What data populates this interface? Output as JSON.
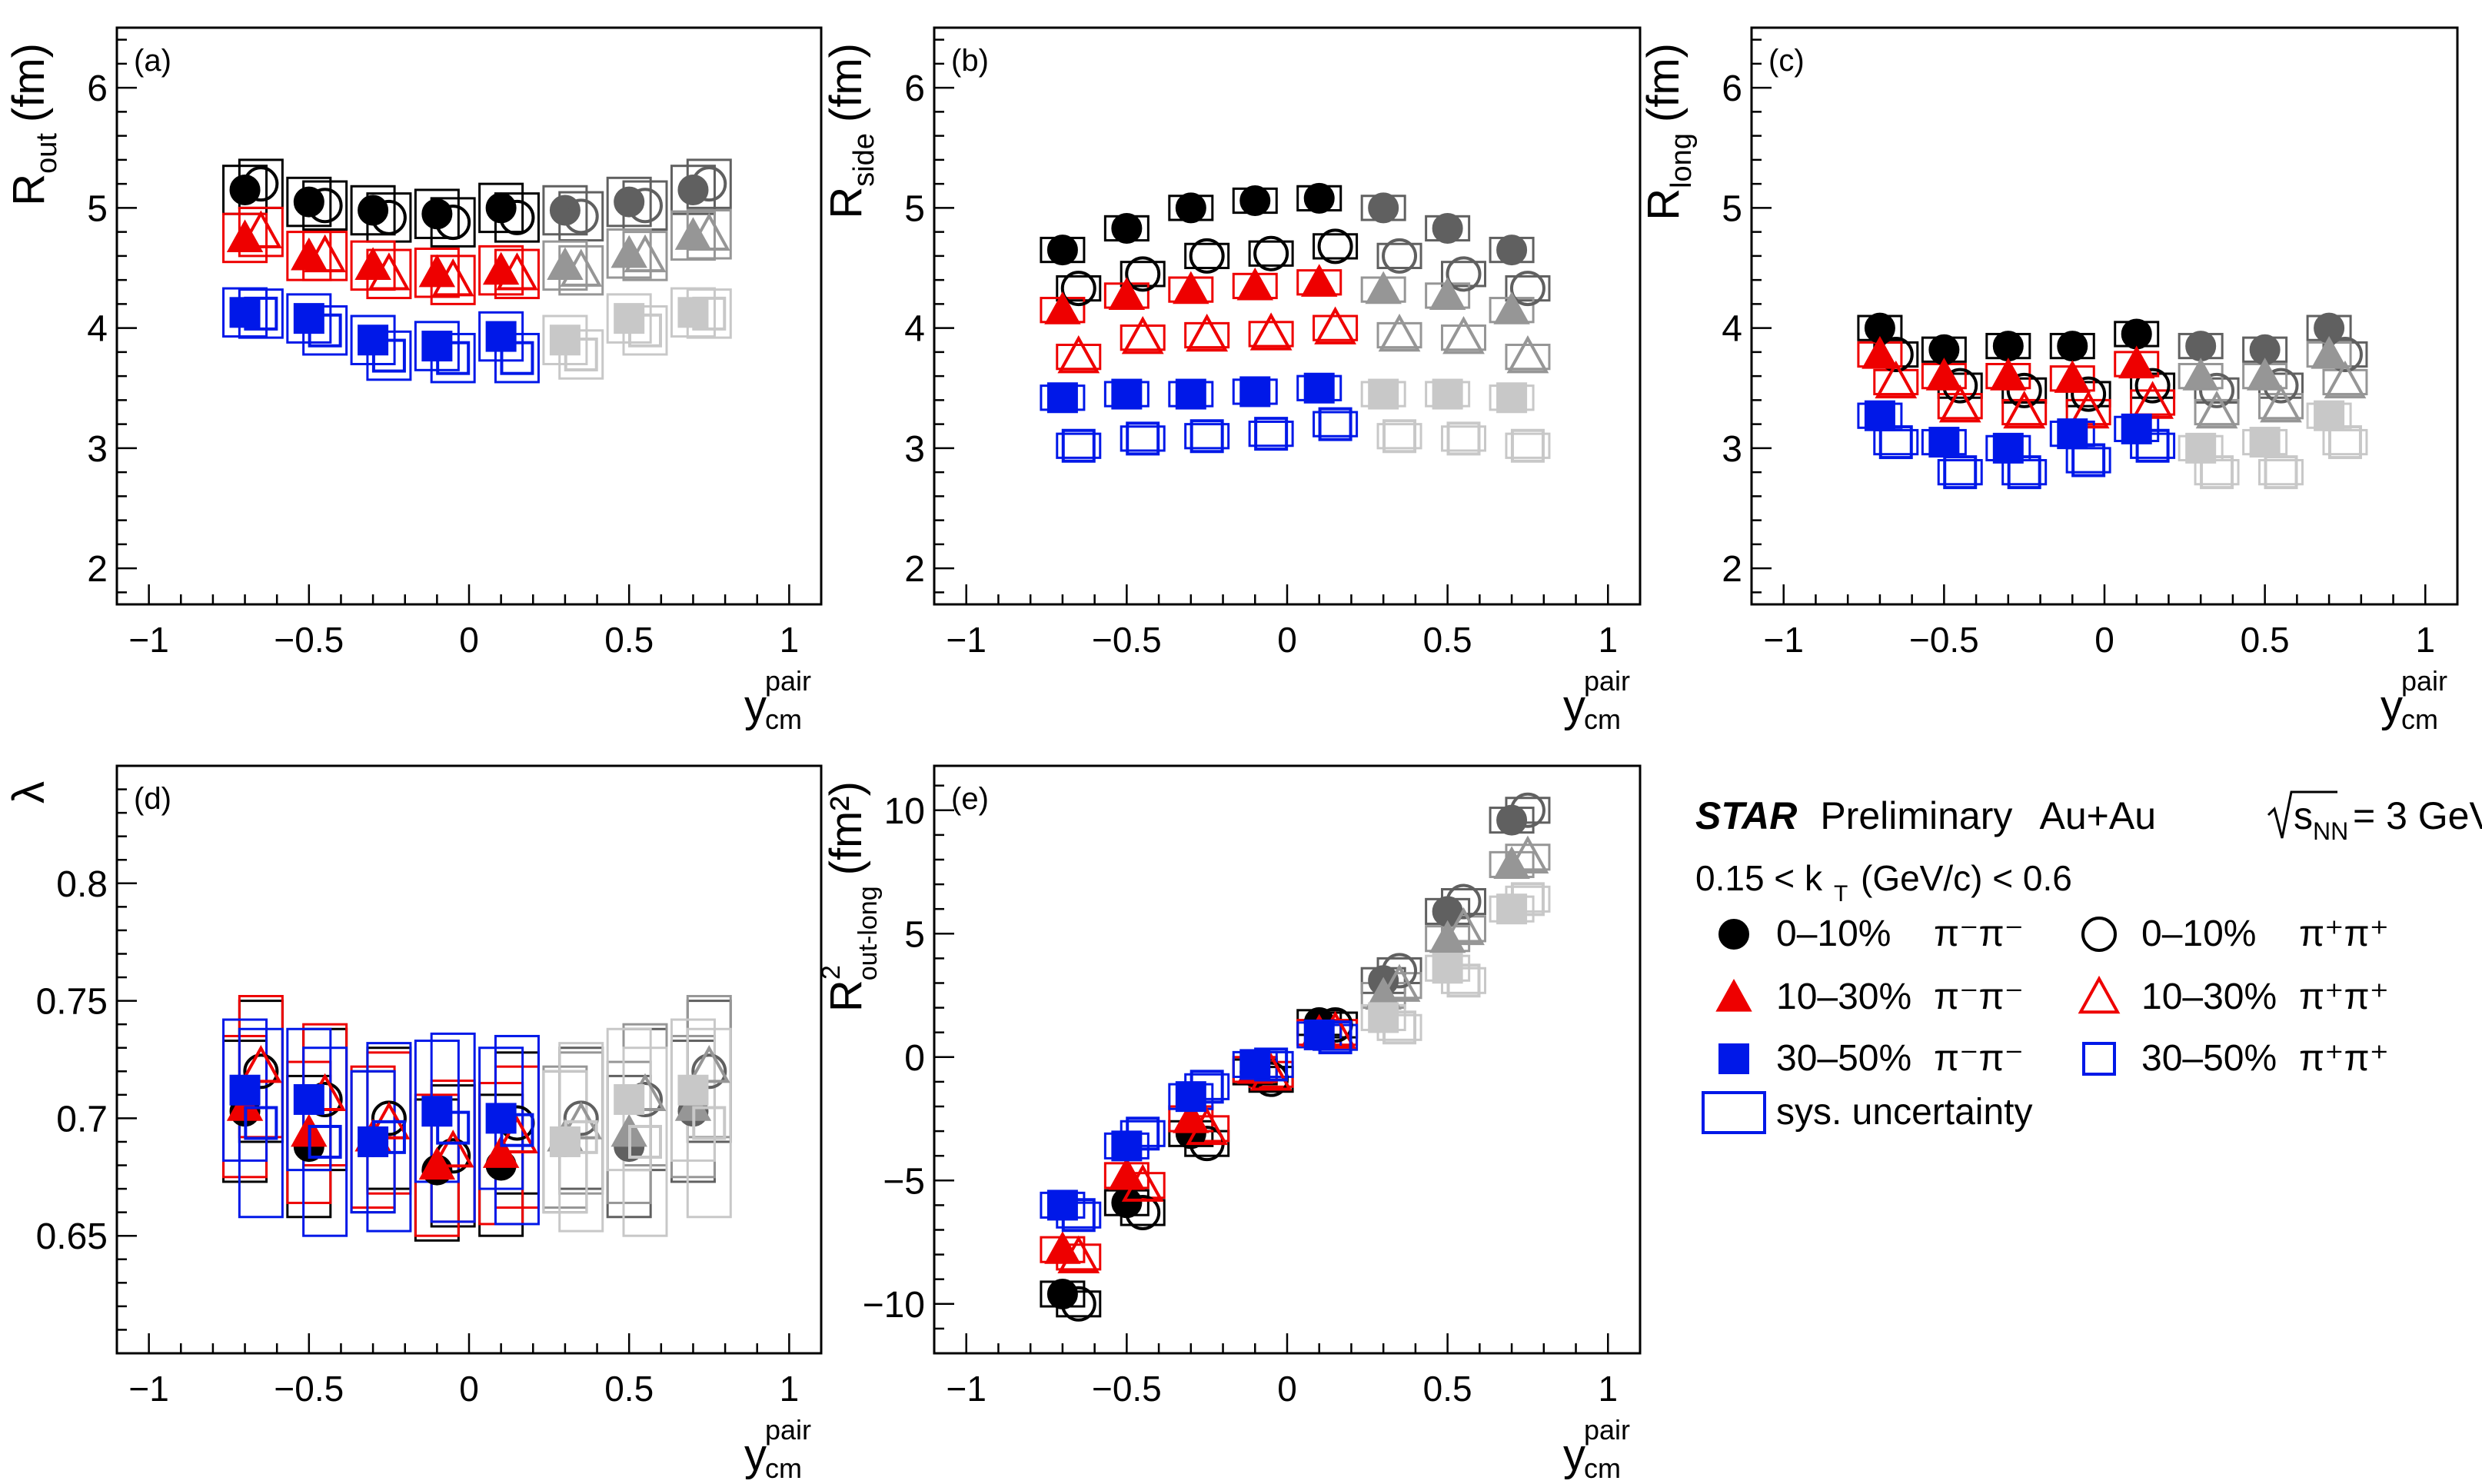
{
  "figure": {
    "colors": {
      "black": "#000000",
      "red": "#ee0000",
      "blue": "#0018e8",
      "dark_gray": "#606060",
      "mid_gray": "#969696",
      "light_gray": "#c8c8c8",
      "frame": "#000000"
    },
    "x_axis": {
      "ticks": [
        -1,
        -0.5,
        0,
        0.5,
        1
      ],
      "tick_labels": [
        "−1",
        "−0.5",
        "0",
        "0.5",
        "1"
      ],
      "label_main": "y",
      "label_sup": "pair",
      "label_sub": "cm",
      "range": [
        -1.1,
        1.1
      ]
    },
    "legend": {
      "star": "STAR",
      "preliminary": "Preliminary",
      "system": "Au+Au",
      "energy_s": "s",
      "energy_sub": "NN",
      "energy_value": "= 3 GeV",
      "kt_pre": "0.15 < k",
      "kt_sub": "T",
      "kt_post": "(GeV/c) < 0.6",
      "entries": [
        {
          "label": "0–10%",
          "pair": "π⁻π⁻",
          "marker": "circle",
          "filled": true,
          "color": "#000000"
        },
        {
          "label": "0–10%",
          "pair": "π⁺π⁺",
          "marker": "circle",
          "filled": false,
          "color": "#000000"
        },
        {
          "label": "10–30%",
          "pair": "π⁻π⁻",
          "marker": "triangle",
          "filled": true,
          "color": "#ee0000"
        },
        {
          "label": "10–30%",
          "pair": "π⁺π⁺",
          "marker": "triangle",
          "filled": false,
          "color": "#ee0000"
        },
        {
          "label": "30–50%",
          "pair": "π⁻π⁻",
          "marker": "square",
          "filled": true,
          "color": "#0018e8"
        },
        {
          "label": "30–50%",
          "pair": "π⁺π⁺",
          "marker": "square",
          "filled": false,
          "color": "#0018e8"
        }
      ],
      "sys_label": "sys. uncertainty"
    }
  },
  "chart_data": [
    {
      "type": "scatter",
      "panel": "(a)",
      "ylabel_main": "R",
      "ylabel_sub": "out",
      "ylabel_unit": "(fm)",
      "ylim": [
        1.7,
        6.5
      ],
      "yticks": [
        2,
        3,
        4,
        5,
        6
      ],
      "ytick_labels": [
        "2",
        "3",
        "4",
        "5",
        "6"
      ],
      "xlim": [
        -1.1,
        1.1
      ],
      "x_minus": [
        -0.7,
        -0.5,
        -0.3,
        -0.1,
        0.1,
        0.3,
        0.5,
        0.7
      ],
      "x_plus": [
        -0.65,
        -0.45,
        -0.25,
        -0.05,
        0.15,
        0.35,
        0.55,
        0.75
      ],
      "series": [
        {
          "name": "0–10% π⁻π⁻",
          "marker": "circle",
          "filled": true,
          "color": "#000000",
          "gray": "#606060",
          "values": [
            5.15,
            5.05,
            4.98,
            4.95,
            5.0,
            4.98,
            5.05,
            5.15
          ],
          "sys": 0.2
        },
        {
          "name": "0–10% π⁺π⁺",
          "marker": "circle",
          "filled": false,
          "color": "#000000",
          "gray": "#606060",
          "values": [
            5.2,
            5.02,
            4.92,
            4.88,
            4.92,
            4.93,
            5.02,
            5.2
          ],
          "sys": 0.2
        },
        {
          "name": "10–30% π⁻π⁻",
          "marker": "triangle",
          "filled": true,
          "color": "#ee0000",
          "gray": "#969696",
          "values": [
            4.75,
            4.6,
            4.52,
            4.46,
            4.48,
            4.52,
            4.62,
            4.77
          ],
          "sys": 0.2
        },
        {
          "name": "10–30% π⁺π⁺",
          "marker": "triangle",
          "filled": false,
          "color": "#ee0000",
          "gray": "#969696",
          "values": [
            4.8,
            4.6,
            4.45,
            4.4,
            4.45,
            4.48,
            4.6,
            4.78
          ],
          "sys": 0.2
        },
        {
          "name": "30–50% π⁻π⁻",
          "marker": "square",
          "filled": true,
          "color": "#0018e8",
          "gray": "#c8c8c8",
          "values": [
            4.13,
            4.08,
            3.9,
            3.85,
            3.93,
            3.9,
            4.08,
            4.13
          ],
          "sys": 0.2
        },
        {
          "name": "30–50% π⁺π⁺",
          "marker": "square",
          "filled": false,
          "color": "#0018e8",
          "gray": "#c8c8c8",
          "values": [
            4.12,
            3.98,
            3.77,
            3.75,
            3.75,
            3.78,
            3.98,
            4.12
          ],
          "sys": 0.2
        }
      ]
    },
    {
      "type": "scatter",
      "panel": "(b)",
      "ylabel_main": "R",
      "ylabel_sub": "side",
      "ylabel_unit": "(fm)",
      "ylim": [
        1.7,
        6.5
      ],
      "yticks": [
        2,
        3,
        4,
        5,
        6
      ],
      "ytick_labels": [
        "2",
        "3",
        "4",
        "5",
        "6"
      ],
      "xlim": [
        -1.1,
        1.1
      ],
      "x_minus": [
        -0.7,
        -0.5,
        -0.3,
        -0.1,
        0.1,
        0.3,
        0.5,
        0.7
      ],
      "x_plus": [
        -0.65,
        -0.45,
        -0.25,
        -0.05,
        0.15,
        0.35,
        0.55,
        0.75
      ],
      "series": [
        {
          "name": "0–10% π⁻π⁻",
          "marker": "circle",
          "filled": true,
          "color": "#000000",
          "gray": "#606060",
          "values": [
            4.65,
            4.83,
            5.0,
            5.06,
            5.08,
            5.0,
            4.83,
            4.65
          ],
          "sys": 0.1
        },
        {
          "name": "0–10% π⁺π⁺",
          "marker": "circle",
          "filled": false,
          "color": "#000000",
          "gray": "#606060",
          "values": [
            4.33,
            4.45,
            4.6,
            4.62,
            4.68,
            4.6,
            4.45,
            4.33
          ],
          "sys": 0.1
        },
        {
          "name": "10–30% π⁻π⁻",
          "marker": "triangle",
          "filled": true,
          "color": "#ee0000",
          "gray": "#969696",
          "values": [
            4.15,
            4.27,
            4.32,
            4.35,
            4.38,
            4.32,
            4.27,
            4.15
          ],
          "sys": 0.1
        },
        {
          "name": "10–30% π⁺π⁺",
          "marker": "triangle",
          "filled": false,
          "color": "#ee0000",
          "gray": "#969696",
          "values": [
            3.76,
            3.92,
            3.94,
            3.95,
            4.0,
            3.94,
            3.92,
            3.76
          ],
          "sys": 0.1
        },
        {
          "name": "30–50% π⁻π⁻",
          "marker": "square",
          "filled": true,
          "color": "#0018e8",
          "gray": "#c8c8c8",
          "values": [
            3.42,
            3.45,
            3.45,
            3.47,
            3.5,
            3.45,
            3.45,
            3.42
          ],
          "sys": 0.1
        },
        {
          "name": "30–50% π⁺π⁺",
          "marker": "square",
          "filled": false,
          "color": "#0018e8",
          "gray": "#c8c8c8",
          "values": [
            3.02,
            3.08,
            3.1,
            3.12,
            3.2,
            3.1,
            3.08,
            3.02
          ],
          "sys": 0.1
        }
      ]
    },
    {
      "type": "scatter",
      "panel": "(c)",
      "ylabel_main": "R",
      "ylabel_sub": "long",
      "ylabel_unit": "(fm)",
      "ylim": [
        1.7,
        6.5
      ],
      "yticks": [
        2,
        3,
        4,
        5,
        6
      ],
      "ytick_labels": [
        "2",
        "3",
        "4",
        "5",
        "6"
      ],
      "xlim": [
        -1.1,
        1.1
      ],
      "x_minus": [
        -0.7,
        -0.5,
        -0.3,
        -0.1,
        0.1,
        0.3,
        0.5,
        0.7
      ],
      "x_plus": [
        -0.65,
        -0.45,
        -0.25,
        -0.05,
        0.15,
        0.35,
        0.55,
        0.75
      ],
      "series": [
        {
          "name": "0–10% π⁻π⁻",
          "marker": "circle",
          "filled": true,
          "color": "#000000",
          "gray": "#606060",
          "values": [
            4.0,
            3.82,
            3.85,
            3.85,
            3.95,
            3.85,
            3.82,
            4.0
          ],
          "sys": 0.1
        },
        {
          "name": "0–10% π⁺π⁺",
          "marker": "circle",
          "filled": false,
          "color": "#000000",
          "gray": "#606060",
          "values": [
            3.78,
            3.52,
            3.48,
            3.45,
            3.52,
            3.48,
            3.52,
            3.78
          ],
          "sys": 0.1
        },
        {
          "name": "10–30% π⁻π⁻",
          "marker": "triangle",
          "filled": true,
          "color": "#ee0000",
          "gray": "#969696",
          "values": [
            3.78,
            3.6,
            3.6,
            3.58,
            3.7,
            3.6,
            3.6,
            3.78
          ],
          "sys": 0.1
        },
        {
          "name": "10–30% π⁺π⁺",
          "marker": "triangle",
          "filled": false,
          "color": "#ee0000",
          "gray": "#969696",
          "values": [
            3.55,
            3.35,
            3.3,
            3.3,
            3.38,
            3.3,
            3.35,
            3.55
          ],
          "sys": 0.1
        },
        {
          "name": "30–50% π⁻π⁻",
          "marker": "square",
          "filled": true,
          "color": "#0018e8",
          "gray": "#c8c8c8",
          "values": [
            3.27,
            3.05,
            3.0,
            3.12,
            3.16,
            3.0,
            3.05,
            3.27
          ],
          "sys": 0.1
        },
        {
          "name": "30–50% π⁺π⁺",
          "marker": "square",
          "filled": false,
          "color": "#0018e8",
          "gray": "#c8c8c8",
          "values": [
            3.05,
            2.8,
            2.8,
            2.9,
            3.02,
            2.8,
            2.8,
            3.05
          ],
          "sys": 0.1
        }
      ]
    },
    {
      "type": "scatter",
      "panel": "(d)",
      "ylabel_main": "λ",
      "ylabel_sub": "",
      "ylabel_unit": "",
      "ylim": [
        0.6,
        0.85
      ],
      "yticks": [
        0.65,
        0.7,
        0.75,
        0.8
      ],
      "ytick_labels": [
        "0.65",
        "0.7",
        "0.75",
        "0.8"
      ],
      "xlim": [
        -1.1,
        1.1
      ],
      "x_minus": [
        -0.7,
        -0.5,
        -0.3,
        -0.1,
        0.1,
        0.3,
        0.5,
        0.7
      ],
      "x_plus": [
        -0.65,
        -0.45,
        -0.25,
        -0.05,
        0.15,
        0.35,
        0.55,
        0.75
      ],
      "series": [
        {
          "name": "0–10% π⁻π⁻",
          "marker": "circle",
          "filled": true,
          "color": "#000000",
          "gray": "#606060",
          "values": [
            0.703,
            0.688,
            0.69,
            0.678,
            0.68,
            0.69,
            0.688,
            0.703
          ],
          "sys": 0.03
        },
        {
          "name": "0–10% π⁺π⁺",
          "marker": "circle",
          "filled": false,
          "color": "#000000",
          "gray": "#606060",
          "values": [
            0.72,
            0.708,
            0.7,
            0.684,
            0.698,
            0.7,
            0.708,
            0.72
          ],
          "sys": 0.03
        },
        {
          "name": "10–30% π⁻π⁻",
          "marker": "triangle",
          "filled": true,
          "color": "#ee0000",
          "gray": "#969696",
          "values": [
            0.705,
            0.694,
            0.692,
            0.68,
            0.685,
            0.692,
            0.694,
            0.705
          ],
          "sys": 0.03
        },
        {
          "name": "10–30% π⁺π⁺",
          "marker": "triangle",
          "filled": false,
          "color": "#ee0000",
          "gray": "#969696",
          "values": [
            0.722,
            0.71,
            0.698,
            0.686,
            0.692,
            0.698,
            0.71,
            0.722
          ],
          "sys": 0.03
        },
        {
          "name": "30–50% π⁻π⁻",
          "marker": "square",
          "filled": true,
          "color": "#0018e8",
          "gray": "#c8c8c8",
          "values": [
            0.712,
            0.708,
            0.69,
            0.703,
            0.7,
            0.69,
            0.708,
            0.712
          ],
          "sys": 0.03
        },
        {
          "name": "30–50% π⁺π⁺",
          "marker": "square",
          "filled": false,
          "color": "#0018e8",
          "gray": "#c8c8c8",
          "values": [
            0.698,
            0.69,
            0.692,
            0.696,
            0.695,
            0.692,
            0.69,
            0.698
          ],
          "sys": 0.04
        }
      ]
    },
    {
      "type": "scatter",
      "panel": "(e)",
      "ylabel_main": "R",
      "ylabel_sub": "out-long",
      "ylabel_sup": "2",
      "ylabel_unit": "(fm²)",
      "ylim": [
        -12,
        11.8
      ],
      "yticks": [
        -10,
        -5,
        0,
        5,
        10
      ],
      "ytick_labels": [
        "−10",
        "−5",
        "0",
        "5",
        "10"
      ],
      "xlim": [
        -1.1,
        1.1
      ],
      "x_minus": [
        -0.7,
        -0.5,
        -0.3,
        -0.1,
        0.1,
        0.3,
        0.5,
        0.7
      ],
      "x_plus": [
        -0.65,
        -0.45,
        -0.25,
        -0.05,
        0.15,
        0.35,
        0.55,
        0.75
      ],
      "series": [
        {
          "name": "0–10% π⁻π⁻",
          "marker": "circle",
          "filled": true,
          "color": "#000000",
          "gray": "#606060",
          "values": [
            -9.6,
            -5.9,
            -3.1,
            -0.6,
            1.4,
            3.1,
            5.9,
            9.6
          ],
          "sys": 0.5
        },
        {
          "name": "0–10% π⁺π⁺",
          "marker": "circle",
          "filled": false,
          "color": "#000000",
          "gray": "#606060",
          "values": [
            -10.0,
            -6.3,
            -3.5,
            -0.9,
            1.3,
            3.5,
            6.3,
            10.0
          ],
          "sys": 0.5
        },
        {
          "name": "10–30% π⁻π⁻",
          "marker": "triangle",
          "filled": true,
          "color": "#ee0000",
          "gray": "#969696",
          "values": [
            -7.8,
            -4.8,
            -2.5,
            -0.5,
            1.0,
            2.5,
            4.8,
            7.8
          ],
          "sys": 0.5
        },
        {
          "name": "10–30% π⁺π⁺",
          "marker": "triangle",
          "filled": false,
          "color": "#ee0000",
          "gray": "#969696",
          "values": [
            -8.1,
            -5.2,
            -2.9,
            -0.7,
            1.0,
            2.9,
            5.2,
            8.1
          ],
          "sys": 0.5
        },
        {
          "name": "30–50% π⁻π⁻",
          "marker": "square",
          "filled": true,
          "color": "#0018e8",
          "gray": "#c8c8c8",
          "values": [
            -6.0,
            -3.6,
            -1.6,
            -0.3,
            0.9,
            1.6,
            3.6,
            6.0
          ],
          "sys": 0.5
        },
        {
          "name": "30–50% π⁺π⁺",
          "marker": "square",
          "filled": false,
          "color": "#0018e8",
          "gray": "#c8c8c8",
          "values": [
            -6.4,
            -3.1,
            -1.2,
            -0.3,
            0.8,
            1.2,
            3.1,
            6.4
          ],
          "sys": 0.5
        }
      ]
    }
  ]
}
